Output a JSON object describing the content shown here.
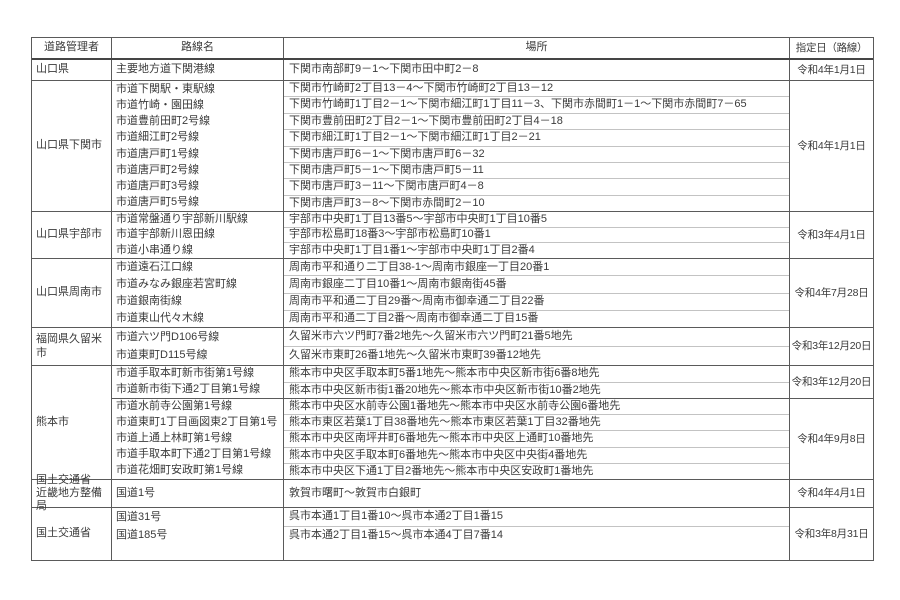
{
  "table": {
    "headers": {
      "manager": "道路管理者",
      "route": "路線名",
      "place": "場所",
      "date": "指定日（路線）"
    },
    "groups": [
      {
        "manager": [
          "山口県"
        ],
        "sections": [
          {
            "date": "令和4年1月1日",
            "rows": [
              {
                "route": "主要地方道下関港線",
                "place": "下関市南部町9－1～下関市田中町2－8"
              }
            ]
          }
        ]
      },
      {
        "manager": [
          "山口県下関市"
        ],
        "sections": [
          {
            "date": "令和4年1月1日",
            "rows": [
              {
                "route": "市道下関駅・東駅線",
                "place": "下関市竹崎町2丁目13－4～下関市竹崎町2丁目13－12"
              },
              {
                "route": "市道竹崎・園田線",
                "place": "下関市竹崎町1丁目2－1～下関市細江町1丁目11－3、下関市赤間町1－1～下関市赤間町7－65"
              },
              {
                "route": "市道豊前田町2号線",
                "place": "下関市豊前田町2丁目2－1～下関市豊前田町2丁目4－18"
              },
              {
                "route": "市道細江町2号線",
                "place": "下関市細江町1丁目2－1～下関市細江町1丁目2－21"
              },
              {
                "route": "市道唐戸町1号線",
                "place": "下関市唐戸町6－1～下関市唐戸町6－32"
              },
              {
                "route": "市道唐戸町2号線",
                "place": "下関市唐戸町5－1～下関市唐戸町5－11"
              },
              {
                "route": "市道唐戸町3号線",
                "place": "下関市唐戸町3－11～下関市唐戸町4－8"
              },
              {
                "route": "市道唐戸町5号線",
                "place": "下関市唐戸町3－8～下関市赤間町2－10"
              }
            ]
          }
        ]
      },
      {
        "manager": [
          "山口県宇部市"
        ],
        "sections": [
          {
            "date": "令和3年4月1日",
            "rows": [
              {
                "route": "市道常盤通り宇部新川駅線",
                "place": "宇部市中央町1丁目13番5～宇部市中央町1丁目10番5"
              },
              {
                "route": "市道宇部新川恩田線",
                "place": "宇部市松島町18番3～宇部市松島町10番1"
              },
              {
                "route": "市道小串通り線",
                "place": "宇部市中央町1丁目1番1～宇部市中央町1丁目2番4"
              }
            ]
          }
        ]
      },
      {
        "manager": [
          "山口県周南市"
        ],
        "sections": [
          {
            "date": "令和4年7月28日",
            "rows": [
              {
                "route": "市道遠石江口線",
                "place": "周南市平和通り二丁目38-1～周南市銀座一丁目20番1"
              },
              {
                "route": "市道みなみ銀座若宮町線",
                "place": "周南市銀座二丁目10番1～周南市銀南街45番"
              },
              {
                "route": "市道銀南街線",
                "place": "周南市平和通二丁目29番～周南市御幸通二丁目22番"
              },
              {
                "route": "市道東山代々木線",
                "place": "周南市平和通二丁目2番～周南市御幸通二丁目15番"
              }
            ]
          }
        ]
      },
      {
        "manager": [
          "福岡県久留米市"
        ],
        "sections": [
          {
            "date": "令和3年12月20日",
            "rows": [
              {
                "route": "市道六ツ門D106号線",
                "place": "久留米市六ツ門町7番2地先～久留米市六ツ門町21番5地先"
              },
              {
                "route": "市道東町D115号線",
                "place": "久留米市東町26番1地先～久留米市東町39番12地先"
              }
            ]
          }
        ]
      },
      {
        "manager": [
          "熊本市"
        ],
        "sections": [
          {
            "date": "令和3年12月20日",
            "rows": [
              {
                "route": "市道手取本町新市街第1号線",
                "place": "熊本市中央区手取本町5番1地先～熊本市中央区新市街6番8地先"
              },
              {
                "route": "市道新市街下通2丁目第1号線",
                "place": "熊本市中央区新市街1番20地先～熊本市中央区新市街10番2地先"
              }
            ]
          },
          {
            "date": "令和4年9月8日",
            "rows": [
              {
                "route": "市道水前寺公園第1号線",
                "place": "熊本市中央区水前寺公園1番地先～熊本市中央区水前寺公園6番地先"
              },
              {
                "route": "市道東町1丁目画図東2丁目第1号",
                "place": "熊本市東区若葉1丁目38番地先～熊本市東区若葉1丁目32番地先"
              },
              {
                "route": "市道上通上林町第1号線",
                "place": "熊本市中央区南坪井町6番地先～熊本市中央区上通町10番地先"
              },
              {
                "route": "市道手取本町下通2丁目第1号線",
                "place": "熊本市中央区手取本町6番地先～熊本市中央区中央街4番地先"
              },
              {
                "route": "市道花畑町安政町第1号線",
                "place": "熊本市中央区下通1丁目2番地先～熊本市中央区安政町1番地先"
              }
            ]
          }
        ]
      },
      {
        "manager": [
          "国土交通省",
          "近畿地方整備局"
        ],
        "sections": [
          {
            "date": "令和4年4月1日",
            "rows": [
              {
                "route": "国道1号",
                "place": "敦賀市曙町～敦賀市白銀町"
              }
            ]
          }
        ]
      },
      {
        "manager": [
          "国土交通省"
        ],
        "sections": [
          {
            "date": "令和3年8月31日",
            "rows": [
              {
                "route": "国道31号",
                "place": "呉市本通1丁目1番10～呉市本通2丁目1番15"
              },
              {
                "route": "国道185号",
                "place": "呉市本通2丁目1番15～呉市本通4丁目7番14"
              }
            ]
          }
        ]
      }
    ]
  }
}
